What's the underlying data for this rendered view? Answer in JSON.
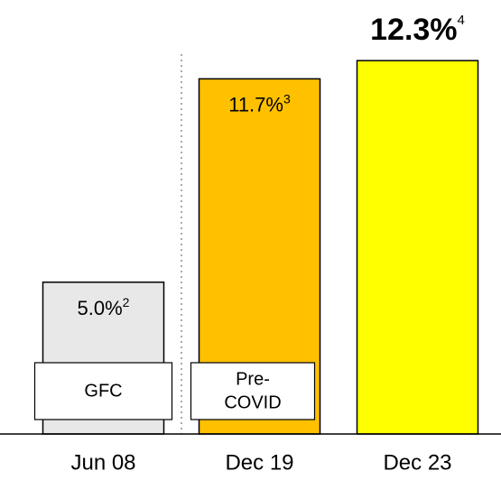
{
  "chart_data": {
    "type": "bar",
    "categories": [
      "Jun 08",
      "Dec 19",
      "Dec 23"
    ],
    "values": [
      5.0,
      11.7,
      12.3
    ],
    "value_labels": [
      "5.0%",
      "11.7%",
      "12.3%"
    ],
    "footnotes": [
      "2",
      "3",
      "4"
    ],
    "colors": [
      "#e8e8e8",
      "#ffc000",
      "#ffff00"
    ],
    "bar_tags": [
      [
        "GFC"
      ],
      [
        "Pre-",
        "COVID"
      ],
      null
    ],
    "ylim": [
      0,
      14
    ]
  }
}
